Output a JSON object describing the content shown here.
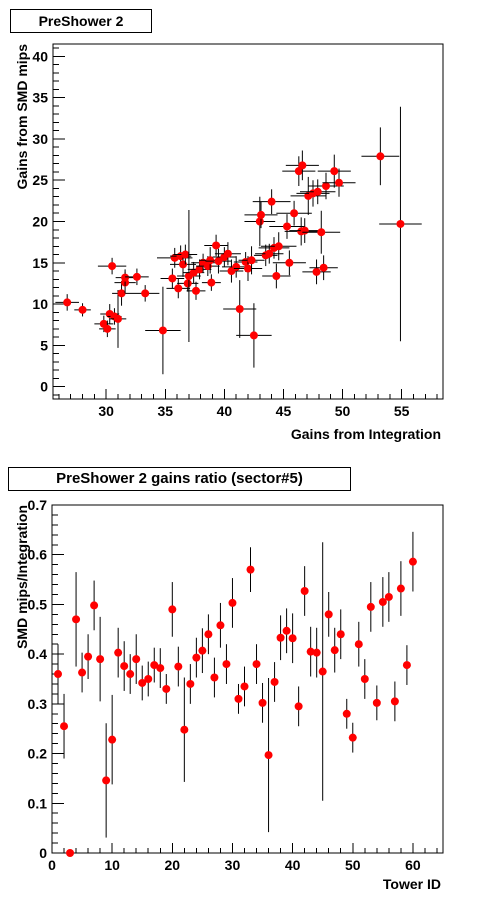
{
  "chart_data": [
    {
      "type": "scatter",
      "title": "PreShower 2",
      "xlabel": "Gains from Integration",
      "ylabel": "Gains from SMD mips",
      "xlim": [
        25.5,
        58.5
      ],
      "ylim": [
        -1.5,
        41.5
      ],
      "xticks": [
        30,
        35,
        40,
        45,
        50,
        55
      ],
      "yticks": [
        0,
        5,
        10,
        15,
        20,
        25,
        30,
        35,
        40
      ],
      "marker_color": "#ff0000",
      "points": [
        {
          "x": 26.7,
          "y": 10.2,
          "ex": 1.0,
          "ey": 1.0
        },
        {
          "x": 28.0,
          "y": 9.3,
          "ex": 0.7,
          "ey": 0.8
        },
        {
          "x": 29.8,
          "y": 7.6,
          "ex": 0.8,
          "ey": 1.0
        },
        {
          "x": 30.1,
          "y": 7.0,
          "ex": 0.7,
          "ey": 1.0
        },
        {
          "x": 30.3,
          "y": 8.8,
          "ex": 0.8,
          "ey": 1.2
        },
        {
          "x": 30.5,
          "y": 14.6,
          "ex": 1.2,
          "ey": 1.0
        },
        {
          "x": 30.7,
          "y": 8.5,
          "ex": 0.6,
          "ey": 1.0
        },
        {
          "x": 31.0,
          "y": 8.2,
          "ex": 0.7,
          "ey": 3.5
        },
        {
          "x": 31.3,
          "y": 11.3,
          "ex": 0.8,
          "ey": 1.5
        },
        {
          "x": 31.6,
          "y": 12.6,
          "ex": 0.9,
          "ey": 1.3
        },
        {
          "x": 31.6,
          "y": 13.2,
          "ex": 0.8,
          "ey": 1.0
        },
        {
          "x": 32.6,
          "y": 13.3,
          "ex": 1.0,
          "ey": 1.0
        },
        {
          "x": 33.3,
          "y": 11.3,
          "ex": 1.2,
          "ey": 1.0
        },
        {
          "x": 34.8,
          "y": 6.8,
          "ex": 1.5,
          "ey": 5.3
        },
        {
          "x": 35.6,
          "y": 13.1,
          "ex": 1.0,
          "ey": 1.2
        },
        {
          "x": 35.8,
          "y": 15.6,
          "ex": 1.5,
          "ey": 1.2
        },
        {
          "x": 36.1,
          "y": 11.9,
          "ex": 1.0,
          "ey": 1.2
        },
        {
          "x": 36.3,
          "y": 15.8,
          "ex": 0.9,
          "ey": 1.3
        },
        {
          "x": 36.5,
          "y": 14.8,
          "ex": 1.1,
          "ey": 1.5
        },
        {
          "x": 36.7,
          "y": 16.0,
          "ex": 1.0,
          "ey": 1.2
        },
        {
          "x": 36.9,
          "y": 12.5,
          "ex": 0.9,
          "ey": 1.0
        },
        {
          "x": 37.0,
          "y": 13.4,
          "ex": 1.0,
          "ey": 8.0
        },
        {
          "x": 37.4,
          "y": 13.8,
          "ex": 0.9,
          "ey": 1.3
        },
        {
          "x": 37.6,
          "y": 11.6,
          "ex": 0.8,
          "ey": 1.1
        },
        {
          "x": 37.9,
          "y": 14.2,
          "ex": 1.0,
          "ey": 1.2
        },
        {
          "x": 38.2,
          "y": 15.0,
          "ex": 1.0,
          "ey": 1.1
        },
        {
          "x": 38.6,
          "y": 14.6,
          "ex": 1.0,
          "ey": 1.2
        },
        {
          "x": 38.8,
          "y": 15.3,
          "ex": 0.9,
          "ey": 1.6
        },
        {
          "x": 38.9,
          "y": 12.6,
          "ex": 0.8,
          "ey": 1.0
        },
        {
          "x": 39.3,
          "y": 17.1,
          "ex": 1.0,
          "ey": 1.3
        },
        {
          "x": 39.5,
          "y": 15.2,
          "ex": 1.1,
          "ey": 1.5
        },
        {
          "x": 40.0,
          "y": 15.7,
          "ex": 1.0,
          "ey": 1.2
        },
        {
          "x": 40.3,
          "y": 16.1,
          "ex": 1.1,
          "ey": 1.4
        },
        {
          "x": 40.6,
          "y": 14.0,
          "ex": 1.0,
          "ey": 1.4
        },
        {
          "x": 41.0,
          "y": 14.5,
          "ex": 1.2,
          "ey": 1.3
        },
        {
          "x": 41.3,
          "y": 9.4,
          "ex": 1.4,
          "ey": 3.5
        },
        {
          "x": 41.8,
          "y": 15.1,
          "ex": 1.0,
          "ey": 1.2
        },
        {
          "x": 42.0,
          "y": 14.3,
          "ex": 1.2,
          "ey": 1.5
        },
        {
          "x": 42.3,
          "y": 15.3,
          "ex": 1.1,
          "ey": 1.7
        },
        {
          "x": 42.5,
          "y": 6.2,
          "ex": 1.5,
          "ey": 3.9
        },
        {
          "x": 43.0,
          "y": 20.0,
          "ex": 1.3,
          "ey": 3.0
        },
        {
          "x": 43.1,
          "y": 20.8,
          "ex": 1.4,
          "ey": 1.6
        },
        {
          "x": 43.5,
          "y": 15.9,
          "ex": 1.0,
          "ey": 1.3
        },
        {
          "x": 43.8,
          "y": 16.1,
          "ex": 1.2,
          "ey": 1.2
        },
        {
          "x": 44.0,
          "y": 22.4,
          "ex": 1.6,
          "ey": 1.5
        },
        {
          "x": 44.2,
          "y": 16.8,
          "ex": 1.3,
          "ey": 1.3
        },
        {
          "x": 44.4,
          "y": 13.4,
          "ex": 1.2,
          "ey": 1.5
        },
        {
          "x": 44.6,
          "y": 17.0,
          "ex": 1.5,
          "ey": 1.7
        },
        {
          "x": 45.3,
          "y": 19.4,
          "ex": 1.5,
          "ey": 1.5
        },
        {
          "x": 45.5,
          "y": 15.0,
          "ex": 1.4,
          "ey": 1.5
        },
        {
          "x": 45.9,
          "y": 21.0,
          "ex": 1.5,
          "ey": 1.5
        },
        {
          "x": 46.3,
          "y": 26.1,
          "ex": 1.4,
          "ey": 1.8
        },
        {
          "x": 46.5,
          "y": 18.8,
          "ex": 1.4,
          "ey": 1.7
        },
        {
          "x": 46.6,
          "y": 26.8,
          "ex": 1.4,
          "ey": 1.8
        },
        {
          "x": 46.8,
          "y": 18.9,
          "ex": 1.3,
          "ey": 1.5
        },
        {
          "x": 47.1,
          "y": 23.1,
          "ex": 1.5,
          "ey": 2.3
        },
        {
          "x": 47.5,
          "y": 23.4,
          "ex": 1.4,
          "ey": 1.6
        },
        {
          "x": 47.8,
          "y": 13.9,
          "ex": 1.2,
          "ey": 1.5
        },
        {
          "x": 47.9,
          "y": 23.6,
          "ex": 1.5,
          "ey": 1.5
        },
        {
          "x": 48.2,
          "y": 18.7,
          "ex": 1.6,
          "ey": 2.6
        },
        {
          "x": 48.4,
          "y": 14.4,
          "ex": 1.2,
          "ey": 1.5
        },
        {
          "x": 48.6,
          "y": 24.3,
          "ex": 1.5,
          "ey": 1.6
        },
        {
          "x": 49.3,
          "y": 26.1,
          "ex": 1.4,
          "ey": 2.0
        },
        {
          "x": 49.7,
          "y": 24.7,
          "ex": 1.4,
          "ey": 1.7
        },
        {
          "x": 53.2,
          "y": 27.9,
          "ex": 1.6,
          "ey": 3.5
        },
        {
          "x": 54.9,
          "y": 19.7,
          "ex": 1.8,
          "ey": 14.2
        }
      ]
    },
    {
      "type": "scatter",
      "title": "PreShower 2 gains ratio (sector#5)",
      "xlabel": "Tower ID",
      "ylabel": "SMD mips/Integration",
      "xlim": [
        0,
        65
      ],
      "ylim": [
        0,
        0.7
      ],
      "xticks": [
        0,
        10,
        20,
        30,
        40,
        50,
        60
      ],
      "yticks": [
        0,
        0.1,
        0.2,
        0.3,
        0.4,
        0.5,
        0.6,
        0.7
      ],
      "marker_color": "#ff0000",
      "points": [
        {
          "x": 1,
          "y": 0.36,
          "ey": 0.06
        },
        {
          "x": 2,
          "y": 0.255,
          "ey": 0.065
        },
        {
          "x": 3,
          "y": 0.0,
          "ey": 0.0
        },
        {
          "x": 4,
          "y": 0.47,
          "ey": 0.095
        },
        {
          "x": 5,
          "y": 0.363,
          "ey": 0.04
        },
        {
          "x": 6,
          "y": 0.395,
          "ey": 0.045
        },
        {
          "x": 7,
          "y": 0.498,
          "ey": 0.05
        },
        {
          "x": 8,
          "y": 0.39,
          "ey": 0.085
        },
        {
          "x": 9,
          "y": 0.146,
          "ey": 0.115
        },
        {
          "x": 10,
          "y": 0.228,
          "ey": 0.09
        },
        {
          "x": 11,
          "y": 0.403,
          "ey": 0.05
        },
        {
          "x": 12,
          "y": 0.376,
          "ey": 0.05
        },
        {
          "x": 13,
          "y": 0.36,
          "ey": 0.04
        },
        {
          "x": 14,
          "y": 0.39,
          "ey": 0.05
        },
        {
          "x": 15,
          "y": 0.342,
          "ey": 0.035
        },
        {
          "x": 16,
          "y": 0.35,
          "ey": 0.035
        },
        {
          "x": 17,
          "y": 0.378,
          "ey": 0.035
        },
        {
          "x": 18,
          "y": 0.372,
          "ey": 0.04
        },
        {
          "x": 19,
          "y": 0.33,
          "ey": 0.03
        },
        {
          "x": 20,
          "y": 0.49,
          "ey": 0.055
        },
        {
          "x": 21,
          "y": 0.375,
          "ey": 0.04
        },
        {
          "x": 22,
          "y": 0.248,
          "ey": 0.105
        },
        {
          "x": 23,
          "y": 0.34,
          "ey": 0.04
        },
        {
          "x": 24,
          "y": 0.393,
          "ey": 0.04
        },
        {
          "x": 25,
          "y": 0.407,
          "ey": 0.045
        },
        {
          "x": 26,
          "y": 0.44,
          "ey": 0.04
        },
        {
          "x": 27,
          "y": 0.353,
          "ey": 0.04
        },
        {
          "x": 28,
          "y": 0.458,
          "ey": 0.045
        },
        {
          "x": 29,
          "y": 0.38,
          "ey": 0.04
        },
        {
          "x": 30,
          "y": 0.503,
          "ey": 0.05
        },
        {
          "x": 31,
          "y": 0.31,
          "ey": 0.03
        },
        {
          "x": 32,
          "y": 0.335,
          "ey": 0.04
        },
        {
          "x": 33,
          "y": 0.57,
          "ey": 0.045
        },
        {
          "x": 34,
          "y": 0.38,
          "ey": 0.04
        },
        {
          "x": 35,
          "y": 0.302,
          "ey": 0.04
        },
        {
          "x": 36,
          "y": 0.197,
          "ey": 0.155
        },
        {
          "x": 37,
          "y": 0.344,
          "ey": 0.04
        },
        {
          "x": 38,
          "y": 0.433,
          "ey": 0.045
        },
        {
          "x": 39,
          "y": 0.447,
          "ey": 0.045
        },
        {
          "x": 40,
          "y": 0.432,
          "ey": 0.05
        },
        {
          "x": 41,
          "y": 0.295,
          "ey": 0.04
        },
        {
          "x": 42,
          "y": 0.527,
          "ey": 0.05
        },
        {
          "x": 43,
          "y": 0.405,
          "ey": 0.05
        },
        {
          "x": 44,
          "y": 0.403,
          "ey": 0.05
        },
        {
          "x": 45,
          "y": 0.365,
          "ey": 0.26
        },
        {
          "x": 46,
          "y": 0.48,
          "ey": 0.045
        },
        {
          "x": 47,
          "y": 0.408,
          "ey": 0.045
        },
        {
          "x": 48,
          "y": 0.44,
          "ey": 0.05
        },
        {
          "x": 49,
          "y": 0.28,
          "ey": 0.03
        },
        {
          "x": 50,
          "y": 0.232,
          "ey": 0.03
        },
        {
          "x": 51,
          "y": 0.42,
          "ey": 0.045
        },
        {
          "x": 52,
          "y": 0.35,
          "ey": 0.04
        },
        {
          "x": 53,
          "y": 0.495,
          "ey": 0.05
        },
        {
          "x": 54,
          "y": 0.302,
          "ey": 0.035
        },
        {
          "x": 55,
          "y": 0.505,
          "ey": 0.05
        },
        {
          "x": 56,
          "y": 0.515,
          "ey": 0.05
        },
        {
          "x": 57,
          "y": 0.305,
          "ey": 0.04
        },
        {
          "x": 58,
          "y": 0.532,
          "ey": 0.055
        },
        {
          "x": 59,
          "y": 0.378,
          "ey": 0.04
        },
        {
          "x": 60,
          "y": 0.586,
          "ey": 0.06
        }
      ]
    }
  ]
}
